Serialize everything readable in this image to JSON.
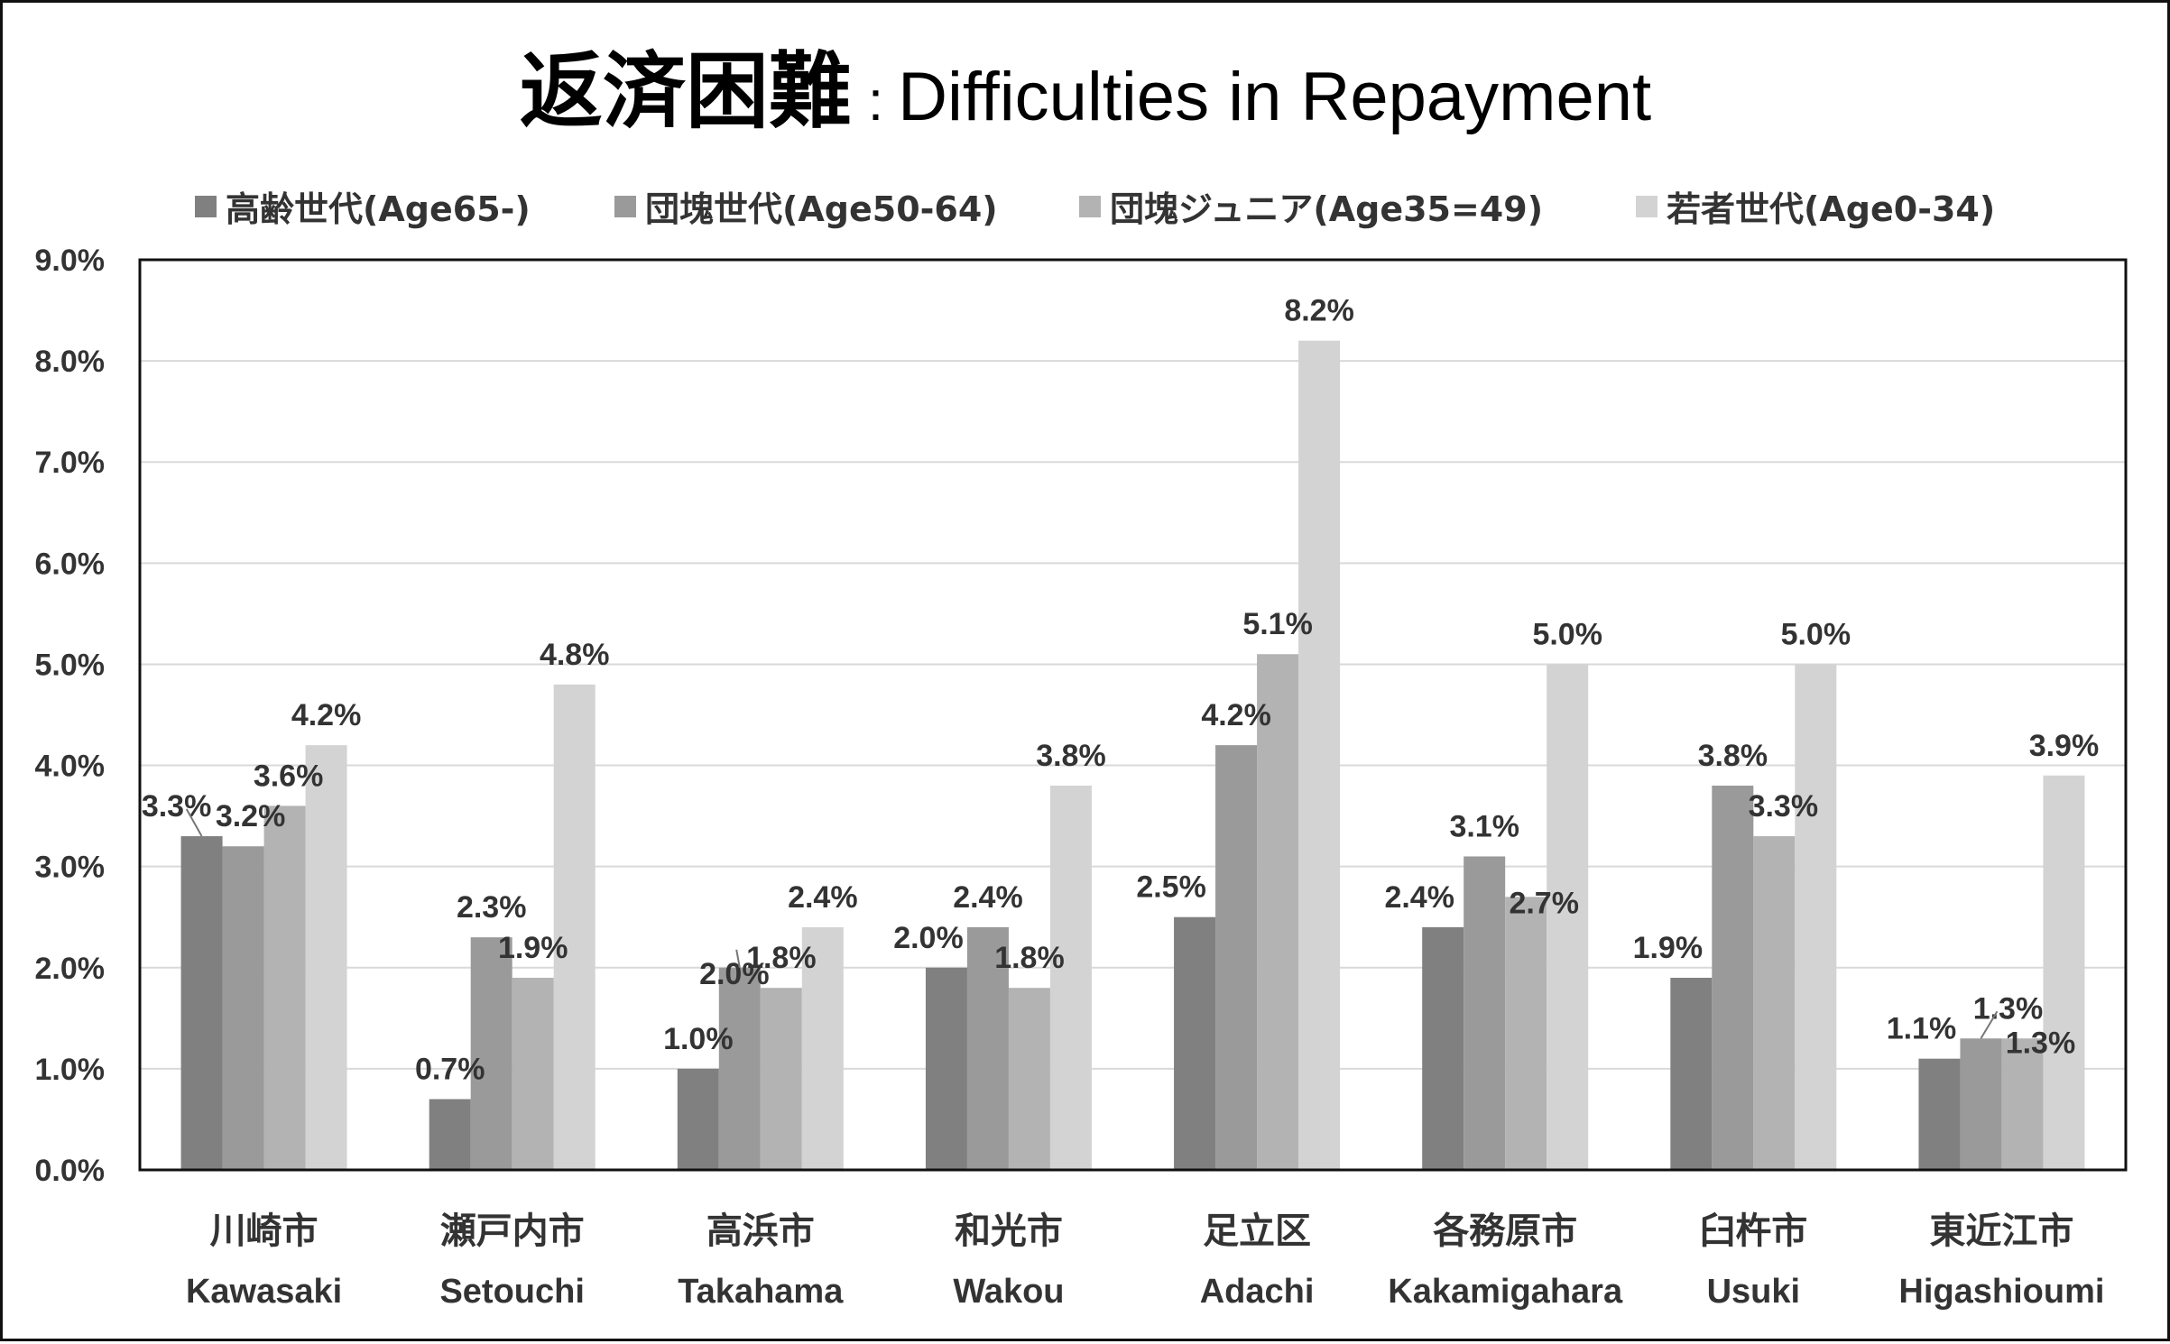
{
  "title": {
    "jp": "返済困難",
    "separator": ":",
    "en": "Difficulties in Repayment"
  },
  "colors": {
    "series": [
      "#808080",
      "#9a9a9a",
      "#b3b3b3",
      "#d3d3d3"
    ],
    "grid": "#d9d9d9",
    "text": "#333333"
  },
  "chart_data": {
    "type": "bar",
    "title": "返済困難 : Difficulties in Repayment",
    "categories": [
      {
        "jp": "川崎市",
        "en": "Kawasaki"
      },
      {
        "jp": "瀬戸内市",
        "en": "Setouchi"
      },
      {
        "jp": "高浜市",
        "en": "Takahama"
      },
      {
        "jp": "和光市",
        "en": "Wakou"
      },
      {
        "jp": "足立区",
        "en": "Adachi"
      },
      {
        "jp": "各務原市",
        "en": "Kakamigahara"
      },
      {
        "jp": "臼杵市",
        "en": "Usuki"
      },
      {
        "jp": "東近江市",
        "en": "Higashioumi"
      }
    ],
    "series": [
      {
        "name": "高齢世代(Age65-)",
        "values": [
          3.3,
          0.7,
          1.0,
          2.0,
          2.5,
          2.4,
          1.9,
          1.1
        ]
      },
      {
        "name": "団塊世代(Age50-64)",
        "values": [
          3.2,
          2.3,
          2.0,
          2.4,
          4.2,
          3.1,
          3.8,
          1.3
        ]
      },
      {
        "name": "団塊ジュニア(Age35=49)",
        "values": [
          3.6,
          1.9,
          1.8,
          1.8,
          5.1,
          2.7,
          3.3,
          1.3
        ]
      },
      {
        "name": "若者世代(Age0-34)",
        "values": [
          4.2,
          4.8,
          2.4,
          3.8,
          8.2,
          5.0,
          5.0,
          3.9
        ]
      }
    ],
    "data_labels": [
      [
        "3.3%",
        "0.7%",
        "1.0%",
        "2.0%",
        "2.5%",
        "2.4%",
        "1.9%",
        "1.1%"
      ],
      [
        "3.2%",
        "2.3%",
        "2.0%",
        "2.4%",
        "4.2%",
        "3.1%",
        "3.8%",
        "1.3%"
      ],
      [
        "3.6%",
        "1.9%",
        "1.8%",
        "1.8%",
        "5.1%",
        "2.7%",
        "3.3%",
        "1.3%"
      ],
      [
        "4.2%",
        "4.8%",
        "2.4%",
        "3.8%",
        "8.2%",
        "5.0%",
        "5.0%",
        "3.9%"
      ]
    ],
    "yticks": [
      "0.0%",
      "1.0%",
      "2.0%",
      "3.0%",
      "4.0%",
      "5.0%",
      "6.0%",
      "7.0%",
      "8.0%",
      "9.0%"
    ],
    "ylim": [
      0,
      9
    ],
    "xlabel": "",
    "ylabel": "",
    "grid": true,
    "legend_position": "top"
  }
}
